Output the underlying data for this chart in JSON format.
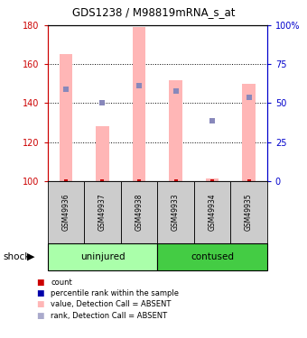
{
  "title": "GDS1238 / M98819mRNA_s_at",
  "samples": [
    "GSM49936",
    "GSM49937",
    "GSM49938",
    "GSM49933",
    "GSM49934",
    "GSM49935"
  ],
  "bar_tops": [
    165,
    128,
    179,
    152,
    101,
    150
  ],
  "rank_values": [
    147,
    140,
    149,
    146,
    131,
    143
  ],
  "ylim": [
    100,
    180
  ],
  "yticks_left": [
    100,
    120,
    140,
    160,
    180
  ],
  "yticks_right_pct": [
    0,
    25,
    50,
    75,
    100
  ],
  "bar_color": "#ffb6b6",
  "rank_marker_color": "#8888bb",
  "count_color": "#cc0000",
  "axis_left_color": "#cc0000",
  "axis_right_color": "#0000cc",
  "title_color": "#000000",
  "legend_colors": [
    "#cc0000",
    "#0000aa",
    "#ffb6b6",
    "#aaaacc"
  ],
  "legend_labels": [
    "count",
    "percentile rank within the sample",
    "value, Detection Call = ABSENT",
    "rank, Detection Call = ABSENT"
  ],
  "uninjured_color": "#aaffaa",
  "contused_color": "#44cc44",
  "sample_bg_color": "#cccccc"
}
